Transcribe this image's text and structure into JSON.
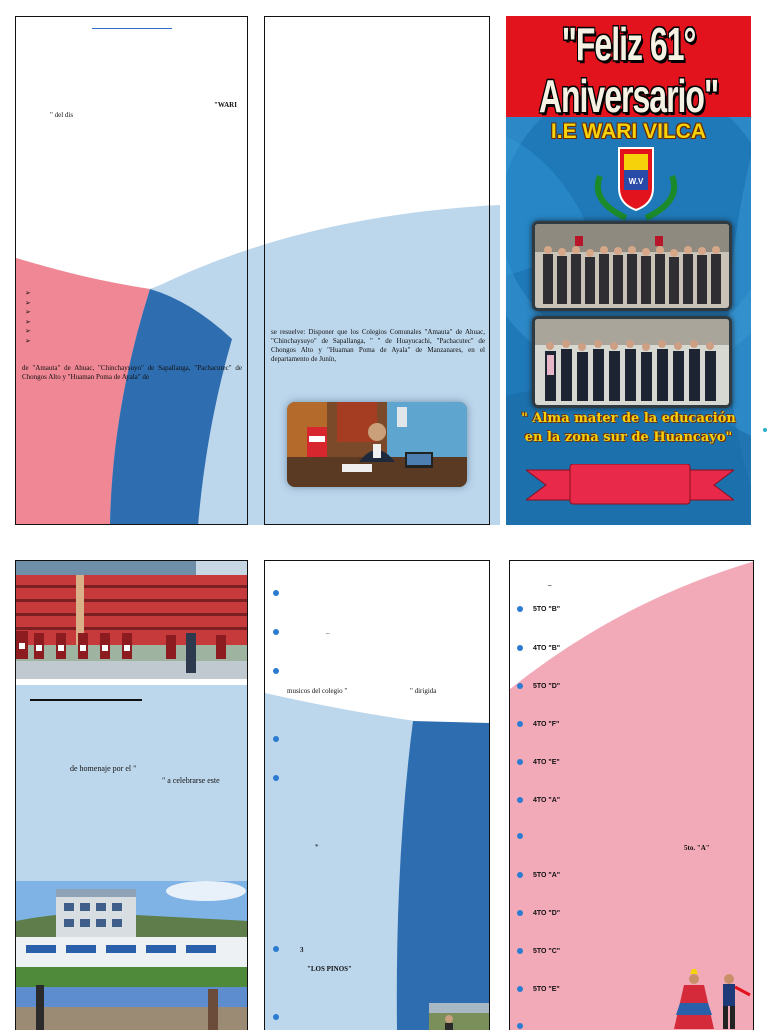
{
  "panel1": {
    "wari_fragment": "\"WARI",
    "del_dis": "\" del dis",
    "bullets": [
      "➢",
      "➢",
      "➢",
      "➢",
      "➢",
      "➢"
    ],
    "colegios_text": "de \"Amauta\" de Ahuac, \"Chinchaysuyo\" de Sapallanga, \"Pachacutec\" de Chongos Alto y \"Huaman Poma de Ayala\" de"
  },
  "panel2": {
    "resolution_text": "se resuelve: Disponer que los Colegios Comunales \"Amauta\" de Ahuac, \"Chinchaysuyo\" de Sapallanga, \"                    \" de Huayucachi, \"Pachacutec\" de Chongos Alto y \"Huaman Poma de Ayala\" de Manzanares, en el departamento de Junín,"
  },
  "cover": {
    "title": "\"Feliz 61° Aniversario\"",
    "school": "I.E WARI VILCA",
    "crest_text": "W.V",
    "motto": "\" Alma mater de la educación en la zona sur de Huancayo\""
  },
  "panel4": {
    "homenaje": "de homenaje por el \"",
    "celebrarse": "\" a celebrarse este"
  },
  "panel5": {
    "dash": "–",
    "musicos": "musicos del colegio \"",
    "dirigida": "\" dirigida",
    "star": "*",
    "three": "3",
    "los_pinos": "\"LOS PINOS\""
  },
  "panel6": {
    "dash": "–",
    "grades": [
      "5TO \"B\"",
      "4TO \"B\"",
      "5TO \"D\"",
      "4TO \"F\"",
      "4TO \"E\"",
      "4TO \"A\""
    ],
    "grade_mid": "5to. \"A\"",
    "grades2": [
      "5TO \"A\"",
      "4TO \"D\"",
      "5TO \"C\"",
      "5TO \"E\""
    ]
  },
  "colors": {
    "pink": "#ef8794",
    "light_blue": "#bcd6ec",
    "mid_blue": "#2e6db0",
    "cover_red": "#e3131d",
    "cover_blue": "#1f78b8",
    "motto_yellow": "#f5d20a"
  }
}
